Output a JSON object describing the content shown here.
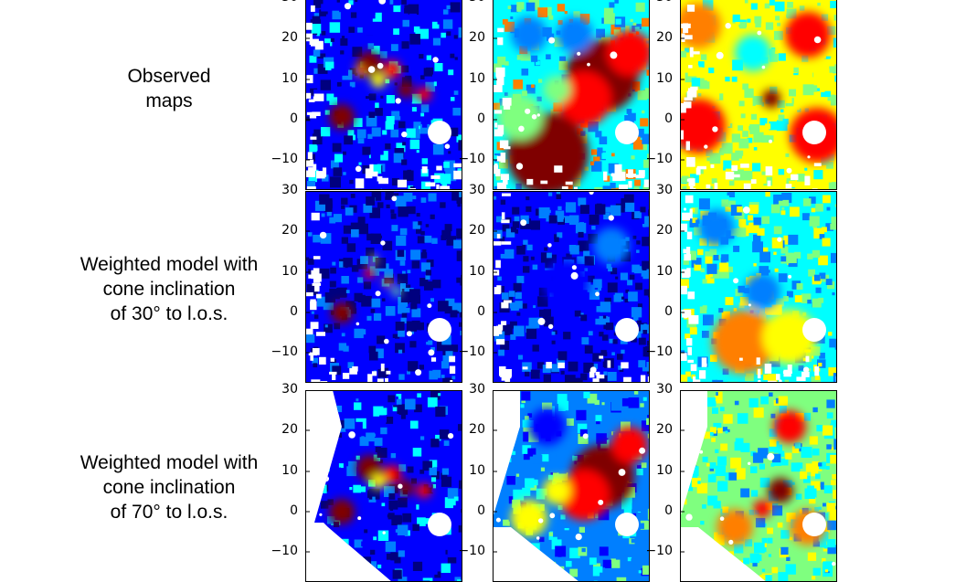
{
  "rows": [
    {
      "label_lines": [
        "Observed",
        "maps"
      ]
    },
    {
      "label_lines": [
        "Weighted model with",
        "cone inclination",
        "of 30° to l.o.s."
      ]
    },
    {
      "label_lines": [
        "Weighted model with",
        "cone inclination",
        "of 70° to l.o.s."
      ]
    }
  ],
  "y_ticks": [
    "30",
    "20",
    "10",
    "0",
    "−10"
  ],
  "colormap": [
    "#00007f",
    "#0000ff",
    "#007fff",
    "#00ffff",
    "#7fff7f",
    "#ffff00",
    "#ff7f00",
    "#ff0000",
    "#7f0000"
  ]
}
